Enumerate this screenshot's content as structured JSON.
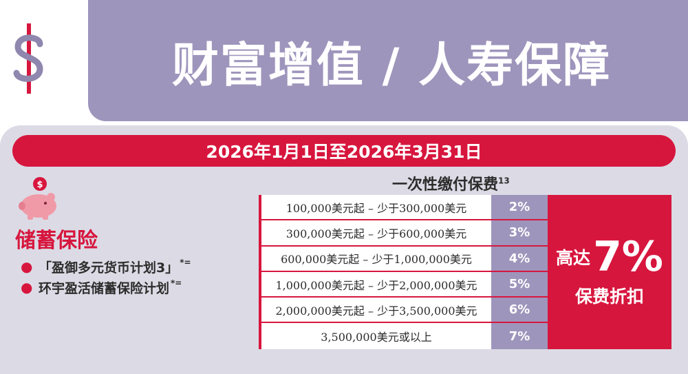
{
  "header": {
    "title": "财富增值 / 人寿保障",
    "icon": "dollar-sign-icon",
    "banner_color": "#9e95bc"
  },
  "promo": {
    "date_range": "2026年1月1日至2026年3月31日",
    "accent_color": "#d7163e"
  },
  "savings": {
    "icon": "piggy-bank-icon",
    "title": "储蓄保险",
    "plans": [
      {
        "name": "「盈御多元货币计划3」",
        "note": "*="
      },
      {
        "name": "环宇盈活储蓄保险计划",
        "note": "*="
      }
    ]
  },
  "table": {
    "heading": "一次性缴付保费",
    "heading_note": "13",
    "rows": [
      {
        "range": "100,000美元起 – 少于300,000美元",
        "rate": "2%"
      },
      {
        "range": "300,000美元起 – 少于600,000美元",
        "rate": "3%"
      },
      {
        "range": "600,000美元起 – 少于1,000,000美元",
        "rate": "4%"
      },
      {
        "range": "1,000,000美元起 – 少于2,000,000美元",
        "rate": "5%"
      },
      {
        "range": "2,000,000美元起 – 少于3,500,000美元",
        "rate": "6%"
      },
      {
        "range": "3,500,000美元或以上",
        "rate": "7%"
      }
    ]
  },
  "discount": {
    "prefix": "高达",
    "value": "7%",
    "label": "保费折扣"
  }
}
